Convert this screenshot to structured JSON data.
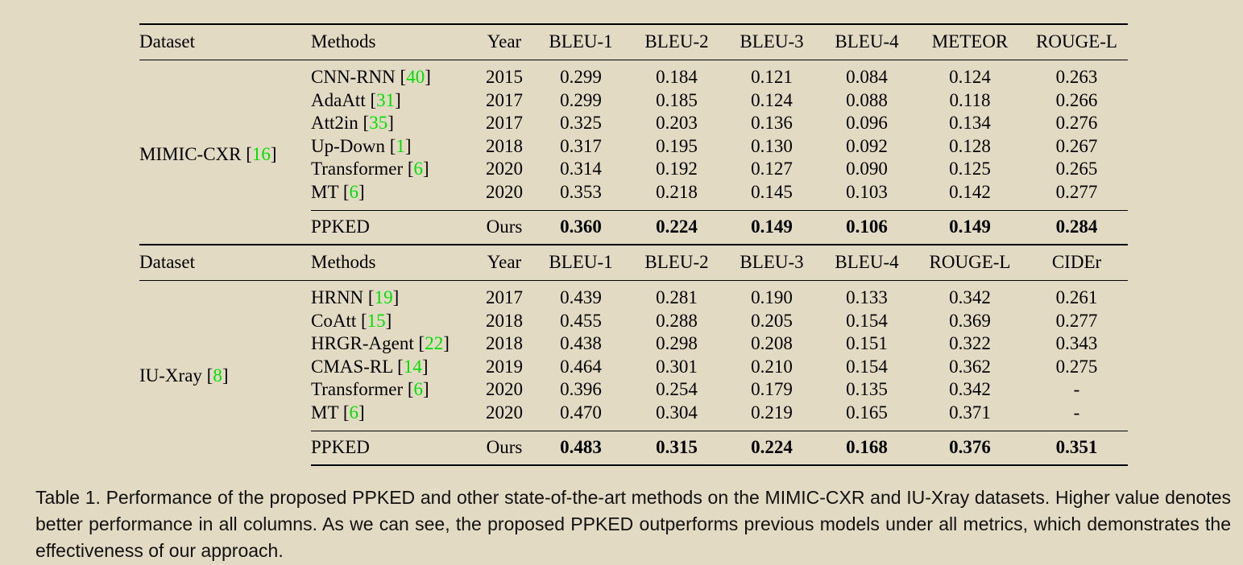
{
  "tables": [
    {
      "headers": [
        "Dataset",
        "Methods",
        "Year",
        "BLEU-1",
        "BLEU-2",
        "BLEU-3",
        "BLEU-4",
        "METEOR",
        "ROUGE-L"
      ],
      "dataset": {
        "name": "MIMIC-CXR",
        "ref": "16"
      },
      "rows": [
        {
          "method": "CNN-RNN",
          "ref": "40",
          "year": "2015",
          "scores": [
            "0.299",
            "0.184",
            "0.121",
            "0.084",
            "0.124",
            "0.263"
          ]
        },
        {
          "method": "AdaAtt",
          "ref": "31",
          "year": "2017",
          "scores": [
            "0.299",
            "0.185",
            "0.124",
            "0.088",
            "0.118",
            "0.266"
          ]
        },
        {
          "method": "Att2in",
          "ref": "35",
          "year": "2017",
          "scores": [
            "0.325",
            "0.203",
            "0.136",
            "0.096",
            "0.134",
            "0.276"
          ]
        },
        {
          "method": "Up-Down",
          "ref": "1",
          "year": "2018",
          "scores": [
            "0.317",
            "0.195",
            "0.130",
            "0.092",
            "0.128",
            "0.267"
          ]
        },
        {
          "method": "Transformer",
          "ref": "6",
          "year": "2020",
          "scores": [
            "0.314",
            "0.192",
            "0.127",
            "0.090",
            "0.125",
            "0.265"
          ]
        },
        {
          "method": "MT",
          "ref": "6",
          "year": "2020",
          "scores": [
            "0.353",
            "0.218",
            "0.145",
            "0.103",
            "0.142",
            "0.277"
          ]
        }
      ],
      "ours": {
        "method": "PPKED",
        "year": "Ours",
        "scores": [
          "0.360",
          "0.224",
          "0.149",
          "0.106",
          "0.149",
          "0.284"
        ]
      }
    },
    {
      "headers": [
        "Dataset",
        "Methods",
        "Year",
        "BLEU-1",
        "BLEU-2",
        "BLEU-3",
        "BLEU-4",
        "ROUGE-L",
        "CIDEr"
      ],
      "dataset": {
        "name": "IU-Xray",
        "ref": "8"
      },
      "rows": [
        {
          "method": "HRNN",
          "ref": "19",
          "year": "2017",
          "scores": [
            "0.439",
            "0.281",
            "0.190",
            "0.133",
            "0.342",
            "0.261"
          ]
        },
        {
          "method": "CoAtt",
          "ref": "15",
          "year": "2018",
          "scores": [
            "0.455",
            "0.288",
            "0.205",
            "0.154",
            "0.369",
            "0.277"
          ]
        },
        {
          "method": "HRGR-Agent",
          "ref": "22",
          "year": "2018",
          "scores": [
            "0.438",
            "0.298",
            "0.208",
            "0.151",
            "0.322",
            "0.343"
          ]
        },
        {
          "method": "CMAS-RL",
          "ref": "14",
          "year": "2019",
          "scores": [
            "0.464",
            "0.301",
            "0.210",
            "0.154",
            "0.362",
            "0.275"
          ]
        },
        {
          "method": "Transformer",
          "ref": "6",
          "year": "2020",
          "scores": [
            "0.396",
            "0.254",
            "0.179",
            "0.135",
            "0.342",
            "-"
          ]
        },
        {
          "method": "MT",
          "ref": "6",
          "year": "2020",
          "scores": [
            "0.470",
            "0.304",
            "0.219",
            "0.165",
            "0.371",
            "-"
          ]
        }
      ],
      "ours": {
        "method": "PPKED",
        "year": "Ours",
        "scores": [
          "0.483",
          "0.315",
          "0.224",
          "0.168",
          "0.376",
          "0.351"
        ]
      }
    }
  ],
  "caption": "Table 1. Performance of the proposed PPKED and other state-of-the-art methods on the MIMIC-CXR and IU-Xray datasets. Higher value denotes better performance in all columns.  As we can see, the proposed PPKED outperforms previous models under all metrics, which demonstrates the effectiveness of our approach.",
  "colors": {
    "background": "#e3dac4",
    "ref_link": "#00e000",
    "text": "#000000"
  }
}
